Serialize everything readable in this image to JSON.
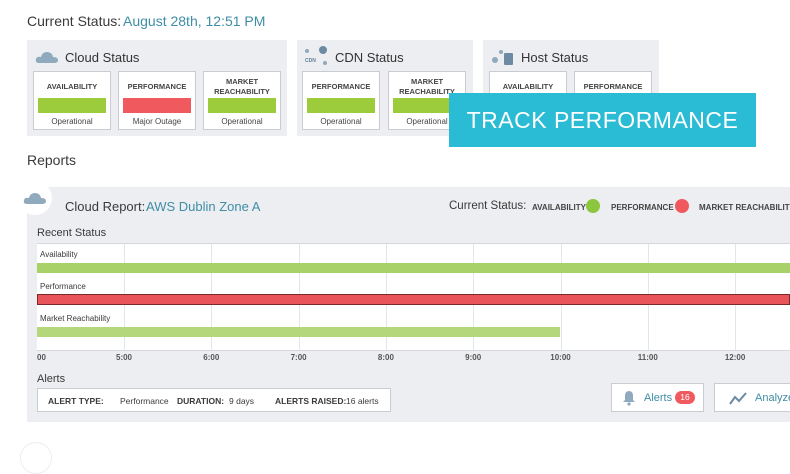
{
  "header": {
    "label": "Current Status:",
    "datetime": "August 28th, 12:51 PM"
  },
  "status_panels": [
    {
      "title": "Cloud Status",
      "cards": [
        {
          "title": "AVAILABILITY",
          "status": "Operational",
          "color": "#9ccb3b"
        },
        {
          "title": "PERFORMANCE",
          "status": "Major Outage",
          "color": "#f05a5f"
        },
        {
          "title": "MARKET REACHABILITY",
          "status": "Operational",
          "color": "#9ccb3b"
        }
      ]
    },
    {
      "title": "CDN Status",
      "icon_label": "CDN",
      "cards": [
        {
          "title": "PERFORMANCE",
          "status": "Operational",
          "color": "#9ccb3b"
        },
        {
          "title": "MARKET REACHABILITY",
          "status": "Operational",
          "color": "#9ccb3b"
        }
      ]
    },
    {
      "title": "Host Status",
      "cards": [
        {
          "title": "AVAILABILITY"
        },
        {
          "title": "PERFORMANCE"
        }
      ]
    }
  ],
  "banner": "TRACK PERFORMANCE",
  "reports": {
    "heading": "Reports",
    "report_label": "Cloud Report:",
    "report_name": "AWS Dublin Zone A",
    "status_label": "Current Status:",
    "legend": [
      {
        "name": "AVAILABILITY",
        "color": "#8cc63f"
      },
      {
        "name": "PERFORMANCE",
        "color": "#f05a5f"
      },
      {
        "name": "MARKET REACHABILITY"
      }
    ],
    "recent_status": {
      "title": "Recent Status",
      "rows": [
        {
          "name": "Availability",
          "color": "#a8d16a"
        },
        {
          "name": "Performance",
          "color": "#e8545a"
        },
        {
          "name": "Market Reachability",
          "color": "#b3d77a"
        }
      ],
      "times": [
        "00",
        "5:00",
        "6:00",
        "7:00",
        "8:00",
        "9:00",
        "10:00",
        "11:00",
        "12:00"
      ]
    },
    "alerts": {
      "title": "Alerts",
      "fields": [
        {
          "key": "ALERT TYPE:",
          "value": "Performance"
        },
        {
          "key": "DURATION:",
          "value": "9 days"
        },
        {
          "key": "ALERTS RAISED:",
          "value": "16 alerts"
        }
      ],
      "buttons": [
        {
          "label": "Alerts",
          "badge": 16
        },
        {
          "label": "Analyze"
        }
      ]
    }
  }
}
